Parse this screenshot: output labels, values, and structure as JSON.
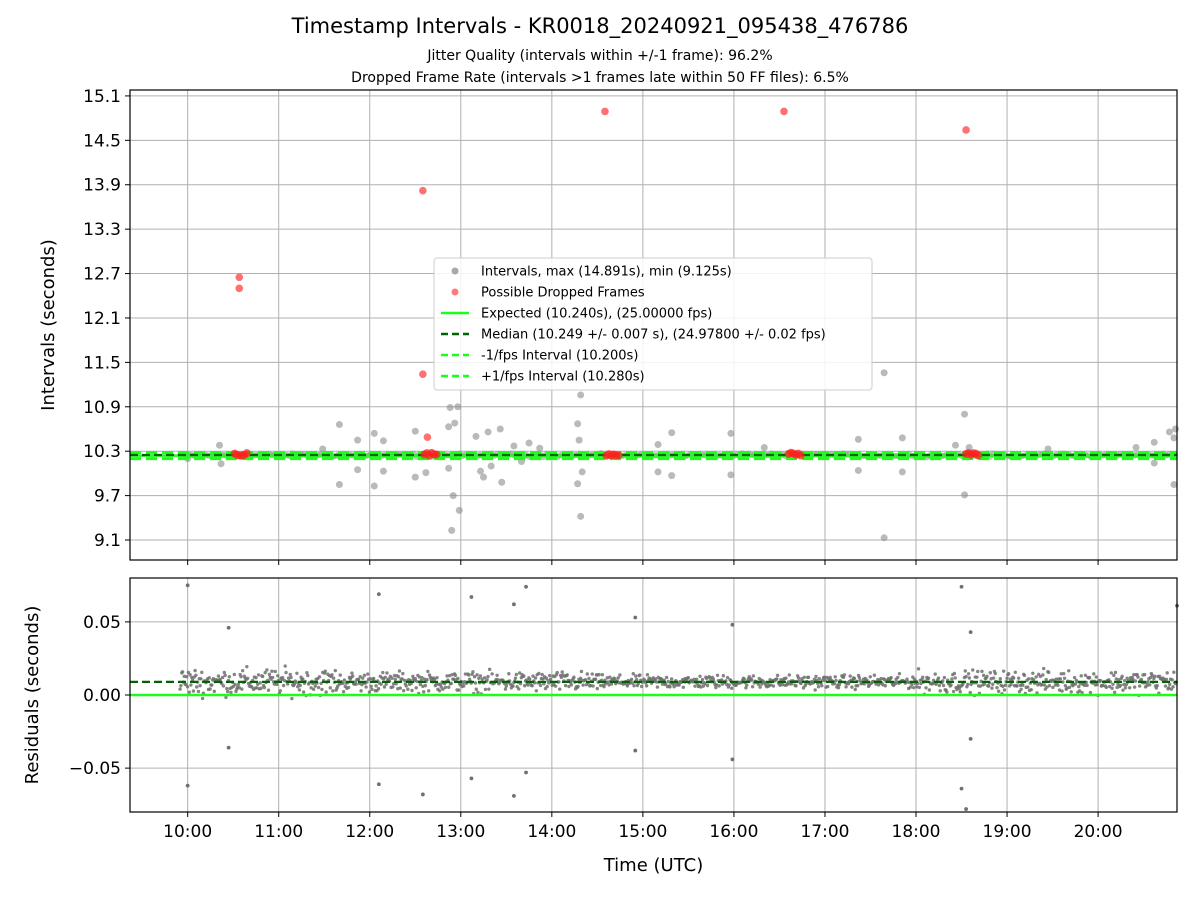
{
  "figure": {
    "title": "Timestamp Intervals - KR0018_20240921_095438_476786",
    "subtitle_1": "Jitter Quality (intervals within +/-1 frame): 96.2%",
    "subtitle_2": "Dropped Frame Rate (intervals >1 frames late within 50 FF files): 6.5%"
  },
  "chart_data": [
    {
      "type": "scatter",
      "panel": "intervals",
      "ylabel": "Intervals (seconds)",
      "xlabel": "",
      "xlim": [
        "09:22",
        "20:52"
      ],
      "ylim": [
        8.83,
        15.18
      ],
      "yticks": [
        "9.1",
        "9.7",
        "10.3",
        "10.9",
        "11.5",
        "12.1",
        "12.7",
        "13.3",
        "13.9",
        "14.5",
        "15.1"
      ],
      "ytick_values": [
        9.1,
        9.7,
        10.3,
        10.9,
        11.5,
        12.1,
        12.7,
        13.3,
        13.9,
        14.5,
        15.1
      ],
      "grid": true,
      "legend_position": "center",
      "legend": [
        {
          "label": "Intervals, max (14.891s), min (9.125s)",
          "kind": "marker",
          "color": "#8c8c8c"
        },
        {
          "label": "Possible Dropped Frames",
          "kind": "marker",
          "color": "#ff4d4d"
        },
        {
          "label": "Expected (10.240s), (25.00000 fps)",
          "kind": "line",
          "color": "#1aff1a",
          "dash": "solid"
        },
        {
          "label": "Median (10.249 +/- 0.007 s), (24.97800 +/- 0.02 fps)",
          "kind": "line",
          "color": "#006400",
          "dash": "dashed"
        },
        {
          "label": "-1/fps Interval (10.200s)",
          "kind": "line",
          "color": "#1aff1a",
          "dash": "dashed"
        },
        {
          "label": "+1/fps Interval (10.280s)",
          "kind": "line",
          "color": "#1aff1a",
          "dash": "dashed"
        }
      ],
      "reference_lines": {
        "expected": 10.24,
        "median": 10.249,
        "minus_one_frame": 10.2,
        "plus_one_frame": 10.28
      },
      "dropped_clusters": [
        {
          "t": "10:35",
          "value": 10.26,
          "count": 6
        },
        {
          "t": "12:40",
          "value": 10.26,
          "count": 6
        },
        {
          "t": "14:40",
          "value": 10.26,
          "count": 6
        },
        {
          "t": "16:40",
          "value": 10.26,
          "count": 6
        },
        {
          "t": "18:37",
          "value": 10.26,
          "count": 6
        }
      ],
      "dropped_points": [
        {
          "t": "10:34",
          "value": 12.65
        },
        {
          "t": "10:34",
          "value": 12.5
        },
        {
          "t": "12:35",
          "value": 13.82
        },
        {
          "t": "12:35",
          "value": 11.34
        },
        {
          "t": "12:38",
          "value": 10.49
        },
        {
          "t": "14:35",
          "value": 14.89
        },
        {
          "t": "16:33",
          "value": 14.89
        },
        {
          "t": "18:33",
          "value": 14.64
        }
      ],
      "outlier_points": [
        {
          "t": "10:00",
          "value": 10.2
        },
        {
          "t": "10:21",
          "value": 10.38
        },
        {
          "t": "10:22",
          "value": 10.13
        },
        {
          "t": "11:29",
          "value": 10.33
        },
        {
          "t": "11:40",
          "value": 10.66
        },
        {
          "t": "11:40",
          "value": 9.85
        },
        {
          "t": "11:52",
          "value": 10.45
        },
        {
          "t": "11:52",
          "value": 10.05
        },
        {
          "t": "12:03",
          "value": 10.54
        },
        {
          "t": "12:03",
          "value": 9.83
        },
        {
          "t": "12:09",
          "value": 10.44
        },
        {
          "t": "12:09",
          "value": 10.03
        },
        {
          "t": "12:30",
          "value": 10.57
        },
        {
          "t": "12:30",
          "value": 9.95
        },
        {
          "t": "12:37",
          "value": 10.01
        },
        {
          "t": "12:52",
          "value": 10.63
        },
        {
          "t": "12:52",
          "value": 10.07
        },
        {
          "t": "12:53",
          "value": 10.89
        },
        {
          "t": "12:54",
          "value": 9.23
        },
        {
          "t": "12:55",
          "value": 9.7
        },
        {
          "t": "12:56",
          "value": 10.68
        },
        {
          "t": "12:58",
          "value": 10.9
        },
        {
          "t": "12:59",
          "value": 9.5
        },
        {
          "t": "13:10",
          "value": 10.5
        },
        {
          "t": "13:13",
          "value": 10.03
        },
        {
          "t": "13:15",
          "value": 9.95
        },
        {
          "t": "13:18",
          "value": 10.56
        },
        {
          "t": "13:20",
          "value": 10.1
        },
        {
          "t": "13:26",
          "value": 10.6
        },
        {
          "t": "13:27",
          "value": 9.88
        },
        {
          "t": "13:35",
          "value": 10.37
        },
        {
          "t": "13:40",
          "value": 10.16
        },
        {
          "t": "13:45",
          "value": 10.41
        },
        {
          "t": "13:52",
          "value": 10.34
        },
        {
          "t": "14:00",
          "value": 10.25
        },
        {
          "t": "14:17",
          "value": 10.67
        },
        {
          "t": "14:17",
          "value": 9.86
        },
        {
          "t": "14:18",
          "value": 10.45
        },
        {
          "t": "14:19",
          "value": 11.06
        },
        {
          "t": "14:19",
          "value": 9.42
        },
        {
          "t": "14:20",
          "value": 10.02
        },
        {
          "t": "15:10",
          "value": 10.39
        },
        {
          "t": "15:10",
          "value": 10.02
        },
        {
          "t": "15:19",
          "value": 10.55
        },
        {
          "t": "15:19",
          "value": 9.97
        },
        {
          "t": "15:58",
          "value": 10.54
        },
        {
          "t": "15:58",
          "value": 9.98
        },
        {
          "t": "16:20",
          "value": 10.35
        },
        {
          "t": "17:22",
          "value": 10.46
        },
        {
          "t": "17:22",
          "value": 10.04
        },
        {
          "t": "17:39",
          "value": 11.36
        },
        {
          "t": "17:39",
          "value": 9.13
        },
        {
          "t": "17:51",
          "value": 10.48
        },
        {
          "t": "17:51",
          "value": 10.02
        },
        {
          "t": "18:26",
          "value": 10.38
        },
        {
          "t": "18:32",
          "value": 10.8
        },
        {
          "t": "18:32",
          "value": 9.71
        },
        {
          "t": "18:35",
          "value": 10.35
        },
        {
          "t": "19:27",
          "value": 10.33
        },
        {
          "t": "19:38",
          "value": 10.26
        },
        {
          "t": "20:25",
          "value": 10.35
        },
        {
          "t": "20:37",
          "value": 10.42
        },
        {
          "t": "20:37",
          "value": 10.14
        },
        {
          "t": "20:47",
          "value": 10.56
        },
        {
          "t": "20:50",
          "value": 10.48
        },
        {
          "t": "20:50",
          "value": 9.85
        },
        {
          "t": "20:51",
          "value": 10.6
        }
      ]
    },
    {
      "type": "scatter",
      "panel": "residuals",
      "ylabel": "Residuals (seconds)",
      "xlabel": "Time (UTC)",
      "xlim": [
        "09:22",
        "20:52"
      ],
      "ylim": [
        -0.08,
        0.08
      ],
      "yticks": [
        "−0.05",
        "0.00",
        "0.05"
      ],
      "ytick_values": [
        -0.05,
        0,
        0.05
      ],
      "xticks": [
        "10:00",
        "11:00",
        "12:00",
        "13:00",
        "14:00",
        "15:00",
        "16:00",
        "17:00",
        "18:00",
        "19:00",
        "20:00"
      ],
      "grid": true,
      "reference_lines": {
        "zero": 0.0,
        "median_offset": 0.009
      },
      "band_center": 0.009,
      "band_spread": [
        {
          "from": "09:55",
          "to": "11:40",
          "half_width": 0.012
        },
        {
          "from": "11:40",
          "to": "14:30",
          "half_width": 0.009
        },
        {
          "from": "14:30",
          "to": "18:00",
          "half_width": 0.006
        },
        {
          "from": "18:00",
          "to": "20:52",
          "half_width": 0.01
        }
      ],
      "outlier_points": [
        {
          "t": "10:00",
          "value": 0.075
        },
        {
          "t": "10:00",
          "value": -0.062
        },
        {
          "t": "10:27",
          "value": 0.046
        },
        {
          "t": "10:27",
          "value": -0.036
        },
        {
          "t": "12:06",
          "value": 0.069
        },
        {
          "t": "12:06",
          "value": -0.061
        },
        {
          "t": "12:35",
          "value": -0.068
        },
        {
          "t": "13:07",
          "value": 0.067
        },
        {
          "t": "13:07",
          "value": -0.057
        },
        {
          "t": "13:35",
          "value": 0.062
        },
        {
          "t": "13:35",
          "value": -0.069
        },
        {
          "t": "13:43",
          "value": 0.074
        },
        {
          "t": "13:43",
          "value": -0.053
        },
        {
          "t": "14:55",
          "value": 0.053
        },
        {
          "t": "14:55",
          "value": -0.038
        },
        {
          "t": "15:59",
          "value": 0.048
        },
        {
          "t": "15:59",
          "value": -0.044
        },
        {
          "t": "18:30",
          "value": 0.074
        },
        {
          "t": "18:30",
          "value": -0.064
        },
        {
          "t": "18:33",
          "value": -0.078
        },
        {
          "t": "18:36",
          "value": 0.043
        },
        {
          "t": "18:36",
          "value": -0.03
        },
        {
          "t": "20:52",
          "value": 0.061
        }
      ]
    }
  ]
}
